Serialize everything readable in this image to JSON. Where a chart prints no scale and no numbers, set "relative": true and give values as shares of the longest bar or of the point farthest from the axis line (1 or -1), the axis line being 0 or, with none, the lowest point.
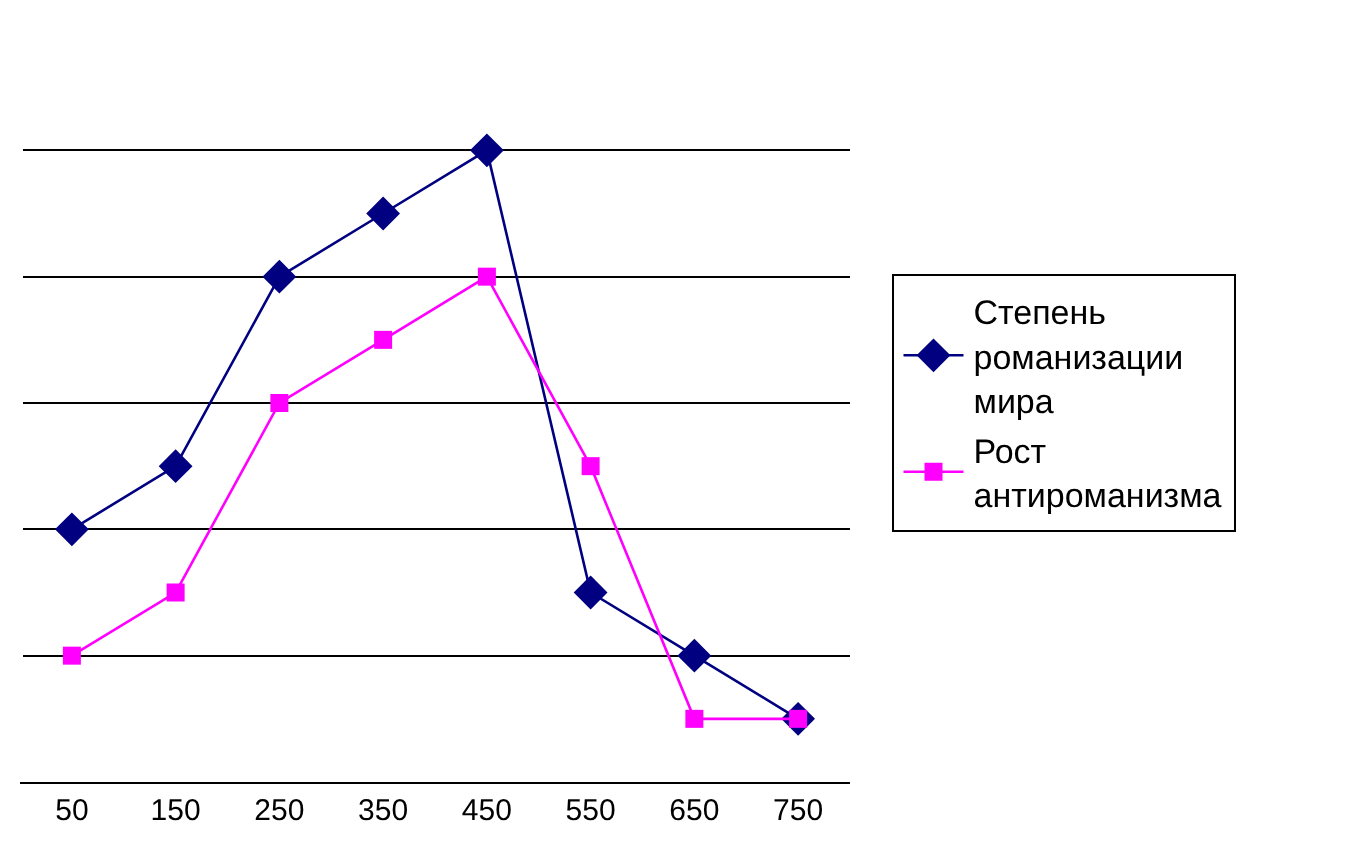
{
  "chart_data": {
    "type": "line",
    "relative": true,
    "categories": [
      "50",
      "150",
      "250",
      "350",
      "450",
      "550",
      "650",
      "750"
    ],
    "series": [
      {
        "name": "Степень романизации мира",
        "color": "#000080",
        "marker": "diamond",
        "values": [
          0.4,
          0.5,
          0.8,
          0.9,
          1,
          0.3,
          0.2,
          0.1
        ]
      },
      {
        "name": "Рост антироманизма",
        "color": "#ff00ff",
        "marker": "square",
        "values": [
          0.2,
          0.3,
          0.6,
          0.7,
          0.8,
          0.5,
          0.1,
          0.1
        ]
      }
    ],
    "grid": "y",
    "legend": "right",
    "line_style": "solid"
  }
}
